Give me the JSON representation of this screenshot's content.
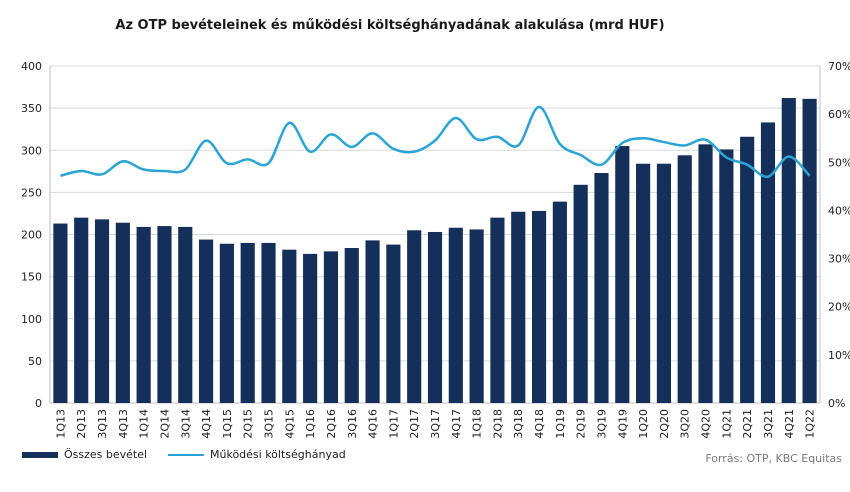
{
  "chart_data": {
    "type": "bar",
    "title": "Az OTP bevételeinek  és működési költséghányadának alakulása (mrd HUF)",
    "categories": [
      "1Q13",
      "2Q13",
      "3Q13",
      "4Q13",
      "1Q14",
      "2Q14",
      "3Q14",
      "4Q14",
      "1Q15",
      "2Q15",
      "3Q15",
      "4Q15",
      "1Q16",
      "2Q16",
      "3Q16",
      "4Q16",
      "1Q17",
      "2Q17",
      "3Q17",
      "4Q17",
      "1Q18",
      "2Q18",
      "3Q18",
      "4Q18",
      "1Q19",
      "2Q19",
      "3Q19",
      "4Q19",
      "1Q20",
      "2Q20",
      "3Q20",
      "4Q20",
      "1Q21",
      "2Q21",
      "3Q21",
      "4Q21",
      "1Q22"
    ],
    "series": [
      {
        "name": "Összes bevétel",
        "type": "bar",
        "axis": "left",
        "color": "#14305a",
        "values": [
          213,
          220,
          218,
          214,
          209,
          210,
          209,
          194,
          189,
          190,
          190,
          182,
          177,
          180,
          184,
          193,
          188,
          205,
          203,
          208,
          206,
          220,
          227,
          228,
          239,
          259,
          273,
          305,
          284,
          284,
          294,
          307,
          301,
          316,
          333,
          362,
          361
        ]
      },
      {
        "name": "Működési költséghányad",
        "type": "line",
        "axis": "right",
        "color": "#2aa3d6",
        "values": [
          47.2,
          48.2,
          47.5,
          50.2,
          48.5,
          48.2,
          48.5,
          54.5,
          49.8,
          50.6,
          49.8,
          58.2,
          52.2,
          55.8,
          53.2,
          56.0,
          52.8,
          52.2,
          54.5,
          59.2,
          54.8,
          55.3,
          53.5,
          61.5,
          53.8,
          51.5,
          49.5,
          54.0,
          55.0,
          54.2,
          53.5,
          54.7,
          51.0,
          49.5,
          47.0,
          51.2,
          47.2
        ]
      }
    ],
    "y_left": {
      "min": 0,
      "max": 400,
      "step": 50,
      "ticks": [
        "0",
        "50",
        "100",
        "150",
        "200",
        "250",
        "300",
        "350",
        "400"
      ]
    },
    "y_right": {
      "min": 0,
      "max": 70,
      "step": 10,
      "ticks": [
        "0%",
        "10%",
        "20%",
        "30%",
        "40%",
        "50%",
        "60%",
        "70%"
      ]
    },
    "grid": true,
    "legend_position": "bottom-left"
  },
  "legend": {
    "bar_label": "Összes bevétel",
    "line_label": "Működési költséghányad"
  },
  "source": "Forrás: OTP, KBC Equitas"
}
